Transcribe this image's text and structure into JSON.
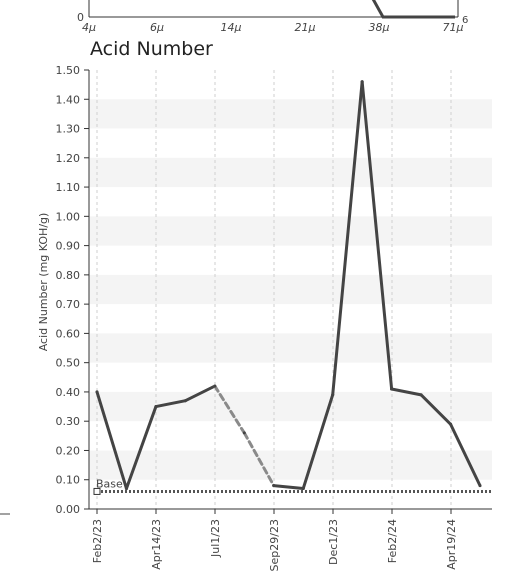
{
  "chart_data": [
    {
      "type": "line",
      "title": "",
      "partial": true,
      "x_tick_labels": [
        "4μ",
        "6μ",
        "14μ",
        "21μ",
        "38μ",
        "71μ"
      ],
      "y_tick_labels_left": [
        "0"
      ],
      "y_tick_labels_right": [
        "6"
      ]
    },
    {
      "type": "line",
      "title": "Acid Number",
      "xlabel": "",
      "ylabel": "Acid Number (mg KOH/g)",
      "ylim": [
        0,
        1.5
      ],
      "y_ticks": [
        "0.00",
        "0.10",
        "0.20",
        "0.30",
        "0.40",
        "0.50",
        "0.60",
        "0.70",
        "0.80",
        "0.90",
        "1.00",
        "1.10",
        "1.20",
        "1.30",
        "1.40",
        "1.50"
      ],
      "x_ticks": [
        "Feb2/23",
        "Apr14/23",
        "Jul1/23",
        "Sep29/23",
        "Dec1/23",
        "Feb2/24",
        "Apr19/24"
      ],
      "grid": true,
      "series": [
        {
          "color": "#444444",
          "values": [
            0.4,
            0.07,
            0.35,
            0.37,
            0.42,
            0.26,
            0.08,
            0.07,
            0.39,
            1.46,
            0.41,
            0.39,
            0.29,
            0.08
          ],
          "dashed_segments": [
            [
              4,
              6
            ]
          ]
        }
      ],
      "baseline": {
        "label": "Base",
        "value": 0.06,
        "color": "#555555"
      }
    }
  ]
}
